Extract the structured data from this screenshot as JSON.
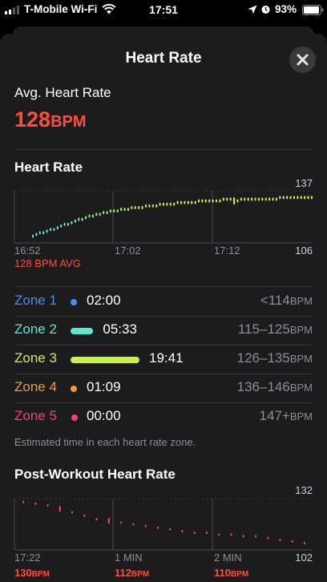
{
  "status_bar": {
    "carrier": "T-Mobile Wi-Fi",
    "time": "17:51",
    "battery": "93%"
  },
  "header": {
    "title": "Heart Rate",
    "close_icon": "close-icon"
  },
  "average": {
    "label": "Avg. Heart Rate",
    "value": "128",
    "unit": "BPM"
  },
  "heart_rate_chart": {
    "title": "Heart Rate",
    "max_label": "137",
    "min_label": "106",
    "x_labels": [
      "16:52",
      "17:02",
      "17:12"
    ],
    "avg_text": "128 BPM AVG"
  },
  "zones": [
    {
      "name": "Zone 1",
      "time": "02:00",
      "range": "<114",
      "unit": "BPM",
      "color": "#4a8ff0",
      "fraction": 0.07
    },
    {
      "name": "Zone 2",
      "time": "05:33",
      "range": "115–125",
      "unit": "BPM",
      "color": "#5ce8d4",
      "fraction": 0.33
    },
    {
      "name": "Zone 3",
      "time": "19:41",
      "range": "126–135",
      "unit": "BPM",
      "color": "#c8f24a",
      "fraction": 1.0
    },
    {
      "name": "Zone 4",
      "time": "01:09",
      "range": "136–146",
      "unit": "BPM",
      "color": "#f09a3a",
      "fraction": 0.04
    },
    {
      "name": "Zone 5",
      "time": "00:00",
      "range": "147+",
      "unit": "BPM",
      "color": "#ff3b7a",
      "fraction": 0.0
    }
  ],
  "zones_note": "Estimated time in each heart rate zone.",
  "post_workout": {
    "title": "Post-Workout Heart Rate",
    "max_label": "132",
    "min_label": "102",
    "points": [
      {
        "label": "17:22",
        "value": "130",
        "unit": "BPM"
      },
      {
        "label": "1 MIN",
        "value": "112",
        "unit": "BPM"
      },
      {
        "label": "2 MIN",
        "value": "110",
        "unit": "BPM"
      }
    ]
  },
  "chart_data": [
    {
      "type": "line",
      "title": "Heart Rate",
      "x_ticks": [
        "16:52",
        "17:02",
        "17:12"
      ],
      "ylim": [
        106,
        137
      ],
      "y_ticks": [
        "106",
        "137"
      ],
      "y": [
        110,
        111,
        112,
        112,
        113,
        114,
        114,
        115,
        116,
        117,
        117,
        118,
        119,
        120,
        120,
        121,
        122,
        122,
        123,
        123,
        124,
        124,
        125,
        125,
        125,
        126,
        126,
        126,
        127,
        127,
        127,
        127,
        128,
        128,
        128,
        128,
        129,
        129,
        129,
        129,
        129,
        130,
        130,
        130,
        130,
        130,
        130,
        131,
        131,
        131,
        131,
        131,
        131,
        131,
        132,
        132,
        132,
        131,
        131,
        132,
        132,
        132,
        132,
        132,
        132,
        132,
        132,
        132,
        132,
        132,
        133,
        133,
        133,
        133,
        133,
        133,
        133,
        133,
        133,
        133
      ]
    },
    {
      "type": "scatter",
      "title": "Post-Workout Heart Rate",
      "x_ticks": [
        "17:22",
        "1 MIN",
        "2 MIN"
      ],
      "ylim": [
        102,
        132
      ],
      "y_ticks": [
        "102",
        "132"
      ],
      "y": [
        130,
        129,
        128,
        126,
        124,
        122,
        120,
        119,
        118,
        117,
        116,
        115,
        114,
        113,
        112,
        112,
        111,
        111,
        110,
        110,
        109,
        108,
        107,
        106
      ]
    }
  ]
}
